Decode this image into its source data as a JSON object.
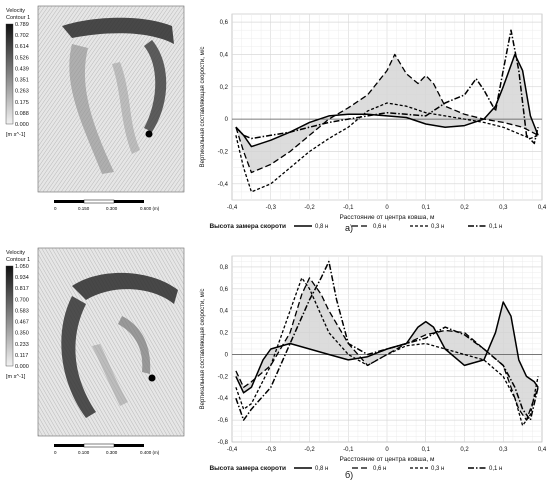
{
  "panels": [
    {
      "caption": "а)",
      "contour": {
        "legend_title": "Velocity",
        "legend_subtitle": "Contour 1",
        "levels": [
          "0.789",
          "0.702",
          "0.614",
          "0.526",
          "0.439",
          "0.351",
          "0.263",
          "0.175",
          "0.088",
          "0.000"
        ],
        "unit": "[m s^-1]",
        "scale_labels": [
          "0",
          "0.150",
          "0.300",
          "0.600 (m)"
        ]
      }
    },
    {
      "caption": "б)",
      "contour": {
        "legend_title": "Velocity",
        "legend_subtitle": "Contour 1",
        "levels": [
          "1.050",
          "0.934",
          "0.817",
          "0.700",
          "0.583",
          "0.467",
          "0.350",
          "0.233",
          "0.117",
          "0.000"
        ],
        "unit": "[m s^-1]",
        "scale_labels": [
          "0",
          "0.100",
          "0.300",
          "0.400 (m)"
        ]
      }
    }
  ],
  "chart_data": [
    {
      "type": "line",
      "ylabel": "Вертикальная составляющая скорости, м/с",
      "xlabel": "Расстояние от центра ковша, м",
      "xlim": [
        -0.4,
        0.4
      ],
      "ylim": [
        -0.5,
        0.65
      ],
      "xticks": [
        "-0,4",
        "-0,3",
        "-0,2",
        "-0,1",
        "0",
        "0,1",
        "0,2",
        "0,3",
        "0,4"
      ],
      "yticks": [
        "0,6",
        "0,4",
        "0,2",
        "0",
        "-0,2",
        "-0,4"
      ],
      "ytick_values": [
        0.6,
        0.4,
        0.2,
        0,
        -0.2,
        -0.4
      ],
      "legend_title": "Высота замера скороти",
      "grid": true,
      "series": [
        {
          "name": "0,8 н",
          "style": "solid",
          "x": [
            -0.39,
            -0.37,
            -0.35,
            -0.3,
            -0.25,
            -0.2,
            -0.15,
            -0.1,
            -0.05,
            0,
            0.05,
            0.1,
            0.15,
            0.2,
            0.25,
            0.28,
            0.3,
            0.33,
            0.35,
            0.37,
            0.39
          ],
          "y": [
            -0.05,
            -0.1,
            -0.17,
            -0.13,
            -0.08,
            -0.02,
            0.02,
            0.03,
            0.03,
            0.02,
            0.01,
            -0.03,
            -0.05,
            -0.04,
            0.0,
            0.08,
            0.2,
            0.4,
            0.3,
            0.02,
            -0.1
          ]
        },
        {
          "name": "0,6 н",
          "style": "dash",
          "x": [
            -0.39,
            -0.37,
            -0.35,
            -0.3,
            -0.25,
            -0.2,
            -0.15,
            -0.1,
            -0.05,
            0,
            0.02,
            0.05,
            0.08,
            0.1,
            0.12,
            0.15,
            0.2,
            0.25,
            0.3,
            0.35,
            0.39
          ],
          "y": [
            -0.05,
            -0.2,
            -0.33,
            -0.28,
            -0.2,
            -0.1,
            0.0,
            0.07,
            0.15,
            0.3,
            0.4,
            0.28,
            0.22,
            0.27,
            0.22,
            0.08,
            0.03,
            0.0,
            -0.02,
            -0.05,
            -0.1
          ]
        },
        {
          "name": "0,3 н",
          "style": "short-dash",
          "x": [
            -0.39,
            -0.37,
            -0.35,
            -0.3,
            -0.25,
            -0.2,
            -0.15,
            -0.1,
            -0.05,
            0,
            0.05,
            0.1,
            0.15,
            0.2,
            0.25,
            0.3,
            0.33,
            0.35,
            0.37,
            0.39
          ],
          "y": [
            -0.1,
            -0.3,
            -0.45,
            -0.4,
            -0.3,
            -0.2,
            -0.12,
            -0.05,
            0.05,
            0.1,
            0.08,
            0.04,
            0.02,
            0.0,
            -0.02,
            -0.05,
            -0.08,
            -0.1,
            -0.12,
            -0.1
          ]
        },
        {
          "name": "0,1 н",
          "style": "dash-dot",
          "x": [
            -0.39,
            -0.37,
            -0.35,
            -0.3,
            -0.25,
            -0.2,
            -0.15,
            -0.1,
            -0.05,
            0,
            0.05,
            0.1,
            0.15,
            0.2,
            0.23,
            0.25,
            0.28,
            0.3,
            0.32,
            0.34,
            0.36,
            0.38,
            0.39
          ],
          "y": [
            -0.05,
            -0.1,
            -0.12,
            -0.1,
            -0.08,
            -0.05,
            -0.02,
            0.0,
            0.02,
            0.04,
            0.03,
            0.02,
            0.1,
            0.15,
            0.25,
            0.18,
            0.05,
            0.3,
            0.55,
            0.3,
            -0.1,
            -0.15,
            -0.05
          ]
        }
      ]
    },
    {
      "type": "line",
      "ylabel": "Вертикальная составляющая скорости, м/с",
      "xlabel": "Расстояние от центра ковша, м",
      "xlim": [
        -0.4,
        0.4
      ],
      "ylim": [
        -0.8,
        0.9
      ],
      "xticks": [
        "-0,4",
        "-0,3",
        "-0,2",
        "-0,1",
        "0",
        "0,1",
        "0,2",
        "0,3",
        "0,4"
      ],
      "yticks": [
        "0,8",
        "0,6",
        "0,4",
        "0,2",
        "0",
        "-0,2",
        "-0,4",
        "-0,6",
        "-0,8"
      ],
      "ytick_values": [
        0.8,
        0.6,
        0.4,
        0.2,
        0,
        -0.2,
        -0.4,
        -0.6,
        -0.8
      ],
      "legend_title": "Высота замера скороти",
      "grid": true,
      "series": [
        {
          "name": "0,8 н",
          "style": "solid",
          "x": [
            -0.39,
            -0.37,
            -0.35,
            -0.32,
            -0.3,
            -0.25,
            -0.2,
            -0.15,
            -0.1,
            -0.05,
            0,
            0.05,
            0.08,
            0.1,
            0.12,
            0.15,
            0.2,
            0.25,
            0.28,
            0.3,
            0.32,
            0.34,
            0.36,
            0.38,
            0.39
          ],
          "y": [
            -0.2,
            -0.35,
            -0.3,
            -0.05,
            0.05,
            0.1,
            0.05,
            0.0,
            -0.05,
            -0.02,
            0.05,
            0.1,
            0.25,
            0.3,
            0.25,
            0.05,
            -0.1,
            -0.05,
            0.2,
            0.48,
            0.35,
            -0.05,
            -0.2,
            -0.25,
            -0.3
          ]
        },
        {
          "name": "0,6 н",
          "style": "dash",
          "x": [
            -0.39,
            -0.37,
            -0.35,
            -0.3,
            -0.25,
            -0.22,
            -0.2,
            -0.17,
            -0.15,
            -0.1,
            -0.05,
            0,
            0.05,
            0.1,
            0.15,
            0.2,
            0.25,
            0.3,
            0.32,
            0.34,
            0.36,
            0.39
          ],
          "y": [
            -0.15,
            -0.3,
            -0.25,
            -0.1,
            0.2,
            0.55,
            0.7,
            0.55,
            0.4,
            0.1,
            -0.1,
            0.0,
            0.1,
            0.18,
            0.22,
            0.2,
            0.05,
            -0.1,
            -0.3,
            -0.5,
            -0.6,
            -0.3
          ]
        },
        {
          "name": "0,3 н",
          "style": "short-dash",
          "x": [
            -0.39,
            -0.37,
            -0.35,
            -0.3,
            -0.25,
            -0.22,
            -0.2,
            -0.15,
            -0.1,
            -0.05,
            0,
            0.05,
            0.1,
            0.15,
            0.2,
            0.25,
            0.3,
            0.33,
            0.35,
            0.37,
            0.39
          ],
          "y": [
            -0.3,
            -0.5,
            -0.45,
            -0.1,
            0.4,
            0.7,
            0.6,
            0.2,
            0.0,
            -0.1,
            0.0,
            0.08,
            0.1,
            0.05,
            0.0,
            -0.05,
            -0.2,
            -0.4,
            -0.65,
            -0.55,
            -0.2
          ]
        },
        {
          "name": "0,1 н",
          "style": "dash-dot",
          "x": [
            -0.39,
            -0.37,
            -0.35,
            -0.3,
            -0.25,
            -0.2,
            -0.17,
            -0.15,
            -0.13,
            -0.1,
            -0.05,
            0,
            0.05,
            0.1,
            0.15,
            0.2,
            0.25,
            0.3,
            0.33,
            0.35,
            0.37,
            0.39
          ],
          "y": [
            -0.4,
            -0.6,
            -0.5,
            -0.3,
            0.1,
            0.5,
            0.7,
            0.85,
            0.5,
            0.1,
            0.0,
            0.05,
            0.1,
            0.15,
            0.25,
            0.18,
            0.05,
            -0.1,
            -0.3,
            -0.5,
            -0.6,
            -0.3
          ]
        }
      ]
    }
  ]
}
